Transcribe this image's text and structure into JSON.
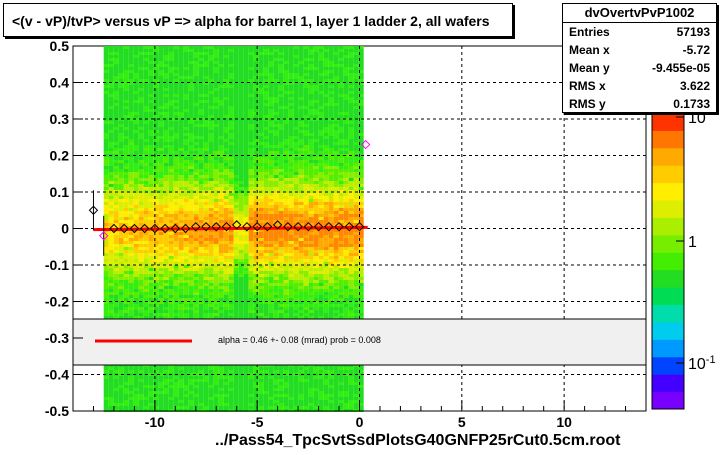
{
  "title": "<(v - vP)/tvP> versus   vP => alpha for barrel 1, layer 1 ladder 2, all wafers",
  "stats": {
    "name": "dvOvertvPvP1002",
    "rows": [
      {
        "label": "Entries",
        "value": "57193"
      },
      {
        "label": "Mean x",
        "value": "-5.72"
      },
      {
        "label": "Mean y",
        "value": "-9.455e-05"
      },
      {
        "label": "RMS x",
        "value": "3.622"
      },
      {
        "label": "RMS y",
        "value": "0.1733"
      }
    ]
  },
  "fit_legend": "alpha =     0.46 +-  0.08 (mrad) prob = 0.008",
  "colors": {
    "fit_line": "#ff0000",
    "markers": "#000000",
    "outlier_marker": "#ff00ff"
  },
  "chart_data": {
    "type": "heatmap",
    "xlabel": "../Pass54_TpcSvtSsdPlotsG40GNFP25rCut0.5cm.root",
    "ylabel": "",
    "xlim": [
      -14,
      14
    ],
    "ylim": [
      -0.5,
      0.5
    ],
    "x_ticks": [
      "-10",
      "-5",
      "0",
      "5",
      "10"
    ],
    "y_ticks": [
      "-0.5",
      "-0.4",
      "-0.3",
      "-0.2",
      "-0.1",
      "0",
      "0.1",
      "0.2",
      "0.3",
      "0.4",
      "0.5"
    ],
    "grid": true,
    "colorbar_ticks": [
      "10",
      "1",
      "10-1"
    ],
    "colorbar_scale": "log",
    "filled_x_range": [
      -12.5,
      0.1
    ],
    "profile_points": {
      "x": [
        -13.0,
        -12.5,
        -12.0,
        -11.5,
        -11.0,
        -10.5,
        -10.0,
        -9.5,
        -9.0,
        -8.5,
        -8.0,
        -7.5,
        -7.0,
        -6.5,
        -6.0,
        -5.5,
        -5.0,
        -4.5,
        -4.0,
        -3.5,
        -3.0,
        -2.5,
        -2.0,
        -1.5,
        -1.0,
        -0.5,
        0.0,
        0.3
      ],
      "y": [
        0.05,
        -0.02,
        0.0,
        0.0,
        0.0,
        0.0,
        0.0,
        0.0,
        0.0,
        0.0,
        0.005,
        0.005,
        0.005,
        0.005,
        0.01,
        0.005,
        0.005,
        0.005,
        0.01,
        0.005,
        0.005,
        0.005,
        0.005,
        0.005,
        0.005,
        0.005,
        0.005,
        0.23
      ]
    },
    "fit_line": {
      "x": [
        -13,
        0.4
      ],
      "y": [
        -0.003,
        0.003
      ]
    }
  }
}
